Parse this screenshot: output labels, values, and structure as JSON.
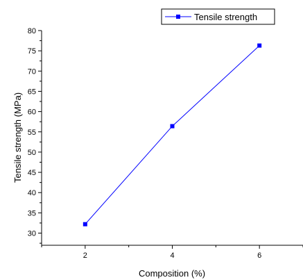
{
  "chart_data": {
    "type": "line",
    "xlabel": "Composition (%)",
    "ylabel": "Tensile strength (MPa)",
    "xlim": [
      1,
      7
    ],
    "ylim": [
      27,
      80
    ],
    "x_ticks": [
      2,
      4,
      6
    ],
    "y_ticks": [
      30,
      35,
      40,
      45,
      50,
      55,
      60,
      65,
      70,
      75,
      80
    ],
    "grid": false,
    "legend_position": "top-right",
    "series": [
      {
        "name": "Tensile strength",
        "x": [
          2,
          4,
          6
        ],
        "y": [
          32.2,
          56.4,
          76.3
        ],
        "color": "#0000ff",
        "marker": "square"
      }
    ]
  }
}
